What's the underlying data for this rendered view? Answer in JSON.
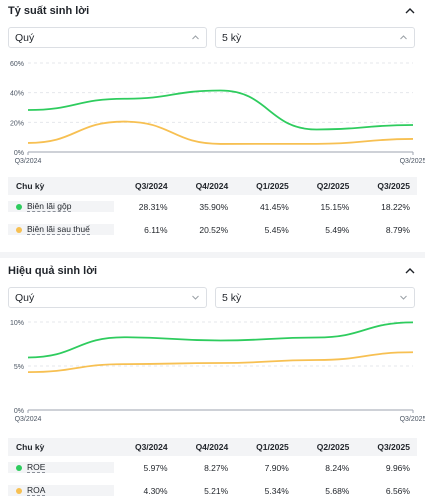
{
  "colors": {
    "green": "#2ecc5e",
    "orange": "#f7c052",
    "grid": "#e5e7eb",
    "axis": "#9ca3af"
  },
  "profit": {
    "title": "Tỷ suất sinh lời",
    "period_select": "Quý",
    "count_select": "5 kỳ",
    "columns_header": "Chu kỳ",
    "columns": [
      "Q3/2024",
      "Q4/2024",
      "Q1/2025",
      "Q2/2025",
      "Q3/2025"
    ],
    "rows": [
      {
        "label": "Biên lãi gộp",
        "color": "#2ecc5e",
        "values": [
          "28.31%",
          "35.90%",
          "41.45%",
          "15.15%",
          "18.22%"
        ]
      },
      {
        "label": "Biên lãi sau thuế",
        "color": "#f7c052",
        "values": [
          "6.11%",
          "20.52%",
          "5.45%",
          "5.49%",
          "8.79%"
        ]
      }
    ],
    "chart_data": {
      "type": "line",
      "categories": [
        "Q3/2024",
        "Q4/2024",
        "Q1/2025",
        "Q2/2025",
        "Q3/2025"
      ],
      "x_tick_labels": [
        "Q3/2024",
        "Q3/2025"
      ],
      "y_tick_labels": [
        "0%",
        "20%",
        "40%",
        "60%"
      ],
      "ylim": [
        0,
        60
      ],
      "series": [
        {
          "name": "Biên lãi gộp",
          "values": [
            28.31,
            35.9,
            41.45,
            15.15,
            18.22
          ]
        },
        {
          "name": "Biên lãi sau thuế",
          "values": [
            6.11,
            20.52,
            5.45,
            5.49,
            8.79
          ]
        }
      ]
    }
  },
  "efficiency": {
    "title": "Hiệu quả sinh lời",
    "period_select": "Quý",
    "count_select": "5 kỳ",
    "columns_header": "Chu kỳ",
    "columns": [
      "Q3/2024",
      "Q4/2024",
      "Q1/2025",
      "Q2/2025",
      "Q3/2025"
    ],
    "rows": [
      {
        "label": "ROE",
        "color": "#2ecc5e",
        "values": [
          "5.97%",
          "8.27%",
          "7.90%",
          "8.24%",
          "9.96%"
        ]
      },
      {
        "label": "ROA",
        "color": "#f7c052",
        "values": [
          "4.30%",
          "5.21%",
          "5.34%",
          "5.68%",
          "6.56%"
        ]
      }
    ],
    "chart_data": {
      "type": "line",
      "categories": [
        "Q3/2024",
        "Q4/2024",
        "Q1/2025",
        "Q2/2025",
        "Q3/2025"
      ],
      "x_tick_labels": [
        "Q3/2024",
        "Q3/2025"
      ],
      "y_tick_labels": [
        "0%",
        "5%",
        "10%"
      ],
      "ylim": [
        0,
        10
      ],
      "series": [
        {
          "name": "ROE",
          "values": [
            5.97,
            8.27,
            7.9,
            8.24,
            9.96
          ]
        },
        {
          "name": "ROA",
          "values": [
            4.3,
            5.21,
            5.34,
            5.68,
            6.56
          ]
        }
      ]
    }
  }
}
